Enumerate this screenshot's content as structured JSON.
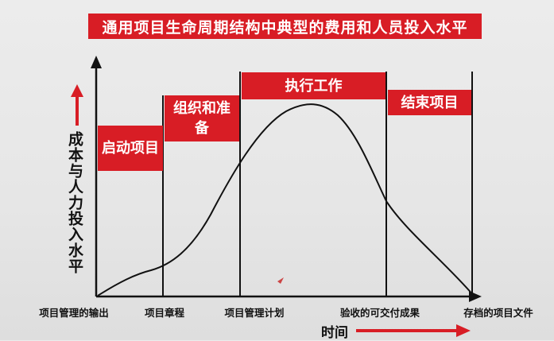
{
  "title": "通用项目生命周期结构中典型的费用和人员投入水平",
  "y_axis_label": "成本与人力投入水平",
  "x_axis_label": "时间",
  "phases": [
    {
      "label": "启动项目"
    },
    {
      "label": "组织和准备"
    },
    {
      "label": "执行工作"
    },
    {
      "label": "结束项目"
    }
  ],
  "milestones": [
    {
      "label": "项目管理的输出"
    },
    {
      "label": "项目章程"
    },
    {
      "label": "项目管理计划"
    },
    {
      "label": "验收的可交付成果"
    },
    {
      "label": "存档的项目文件"
    }
  ],
  "colors": {
    "accent": "#d81d25",
    "line": "#111111"
  }
}
